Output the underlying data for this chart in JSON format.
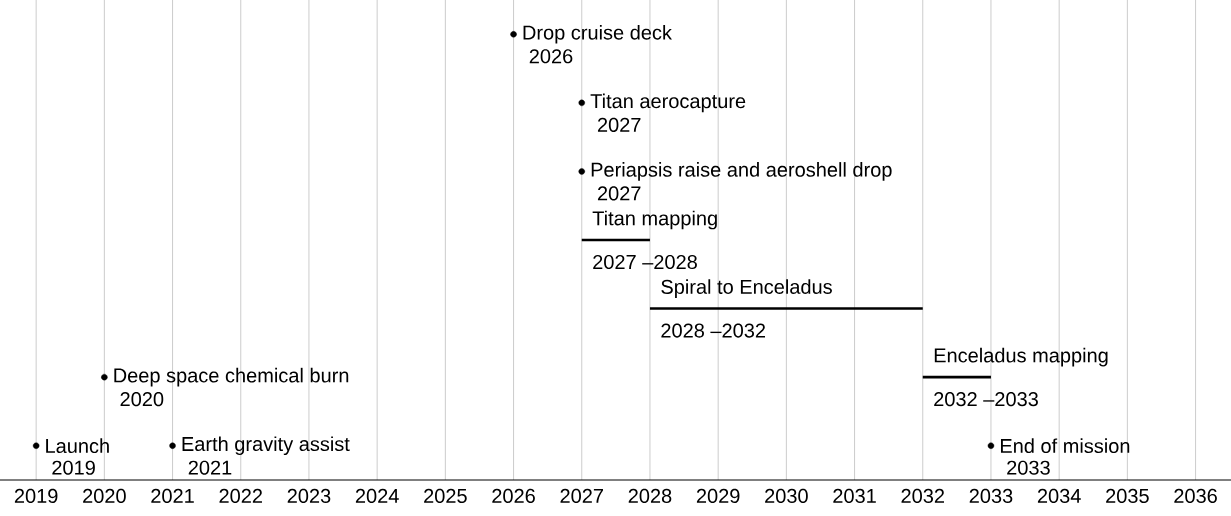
{
  "chart_data": {
    "type": "bar",
    "orientation": "horizontal",
    "color": "#000000",
    "grid": "x",
    "categories": [
      null,
      null,
      null,
      null,
      null,
      null,
      null
    ],
    "series": [
      {
        "name": "Launch",
        "type": "scatter",
        "values": [
          null,
          null,
          null,
          null,
          null,
          null,
          2019
        ],
        "value_labels": [
          null,
          null,
          null,
          null,
          null,
          null,
          "2019"
        ]
      },
      {
        "name": "Deep space chemical burn",
        "type": "scatter",
        "values": [
          null,
          null,
          null,
          null,
          null,
          2020,
          null
        ],
        "value_labels": [
          null,
          null,
          null,
          null,
          null,
          "2020",
          null
        ]
      },
      {
        "name": "Earth gravity assist",
        "type": "scatter",
        "values": [
          null,
          null,
          null,
          null,
          null,
          null,
          2021
        ],
        "value_labels": [
          null,
          null,
          null,
          null,
          null,
          null,
          "2021"
        ]
      },
      {
        "name": "Drop cruise deck",
        "type": "scatter",
        "values": [
          2026,
          null,
          null,
          null,
          null,
          null,
          null
        ],
        "value_labels": [
          "2026",
          null,
          null,
          null,
          null,
          null,
          null
        ]
      },
      {
        "name": "Titan aerocapture",
        "type": "scatter",
        "values": [
          null,
          2027,
          null,
          null,
          null,
          null,
          null
        ],
        "value_labels": [
          null,
          "2027",
          null,
          null,
          null,
          null,
          null
        ]
      },
      {
        "name": "Periapsis raise and aeroshell drop",
        "type": "scatter",
        "values": [
          null,
          null,
          2027,
          null,
          null,
          null,
          null
        ],
        "value_labels": [
          null,
          null,
          "2027",
          null,
          null,
          null,
          null
        ]
      },
      {
        "name": "Titan mapping",
        "type": "bar",
        "base": [
          null,
          null,
          null,
          2027,
          null,
          null,
          null
        ],
        "values": [
          null,
          null,
          null,
          1,
          null,
          null,
          null
        ]
      },
      {
        "name": "Spiral to Enceladus",
        "type": "bar",
        "base": [
          null,
          null,
          null,
          null,
          2028,
          null,
          null
        ],
        "values": [
          null,
          null,
          null,
          null,
          4,
          null,
          null
        ]
      },
      {
        "name": "Enceladus mapping",
        "type": "bar",
        "base": [
          null,
          null,
          null,
          null,
          null,
          2032,
          null
        ],
        "values": [
          null,
          null,
          null,
          null,
          null,
          1,
          null
        ]
      },
      {
        "name": "End of mission",
        "type": "scatter",
        "values": [
          null,
          null,
          null,
          null,
          null,
          null,
          2033
        ],
        "value_labels": [
          null,
          null,
          null,
          null,
          null,
          null,
          "2033"
        ]
      }
    ],
    "annotations": [
      "2027 –2028",
      "2028 –2032",
      "2032 –2033"
    ],
    "xlim": [
      2018.47,
      2036.52
    ],
    "xticks": [
      2019,
      2020,
      2021,
      2022,
      2023,
      2024,
      2025,
      2026,
      2027,
      2028,
      2029,
      2030,
      2031,
      2032,
      2033,
      2034,
      2035,
      2036
    ]
  }
}
